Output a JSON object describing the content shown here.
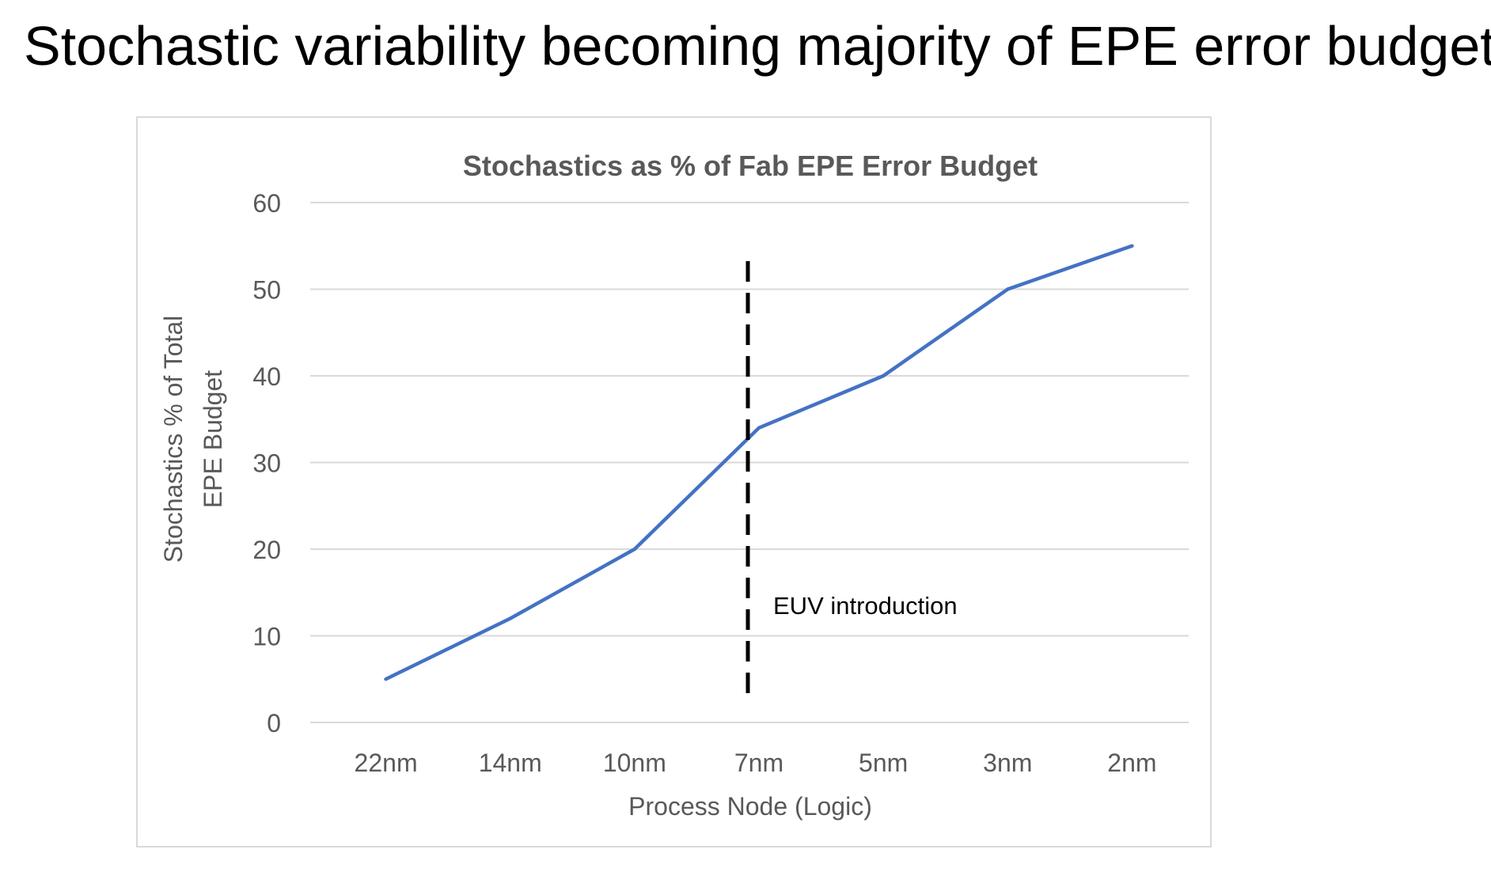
{
  "slide": {
    "title": "Stochastic variability becoming majority of EPE error budget"
  },
  "chart_data": {
    "type": "line",
    "title": "Stochastics as % of Fab EPE Error Budget",
    "xlabel": "Process Node (Logic)",
    "ylabel_lines": [
      "Stochastics % of Total",
      "EPE Budget"
    ],
    "categories": [
      "22nm",
      "14nm",
      "10nm",
      "7nm",
      "5nm",
      "3nm",
      "2nm"
    ],
    "series": [
      {
        "name": "Stochastics % of Total EPE Budget",
        "values": [
          5,
          12,
          20,
          34,
          40,
          50,
          55
        ],
        "color": "#4472C4"
      }
    ],
    "ylim": [
      0,
      60
    ],
    "yticks": [
      0,
      10,
      20,
      30,
      40,
      50,
      60
    ],
    "grid": true,
    "annotations": [
      {
        "text": "EUV introduction",
        "x_category": "7nm",
        "style": "dashed-vertical-line",
        "color": "#000000"
      }
    ],
    "colors": {
      "grid": "#D9D9D9",
      "axis_text": "#595959",
      "frame": "#D9D9D9"
    }
  }
}
